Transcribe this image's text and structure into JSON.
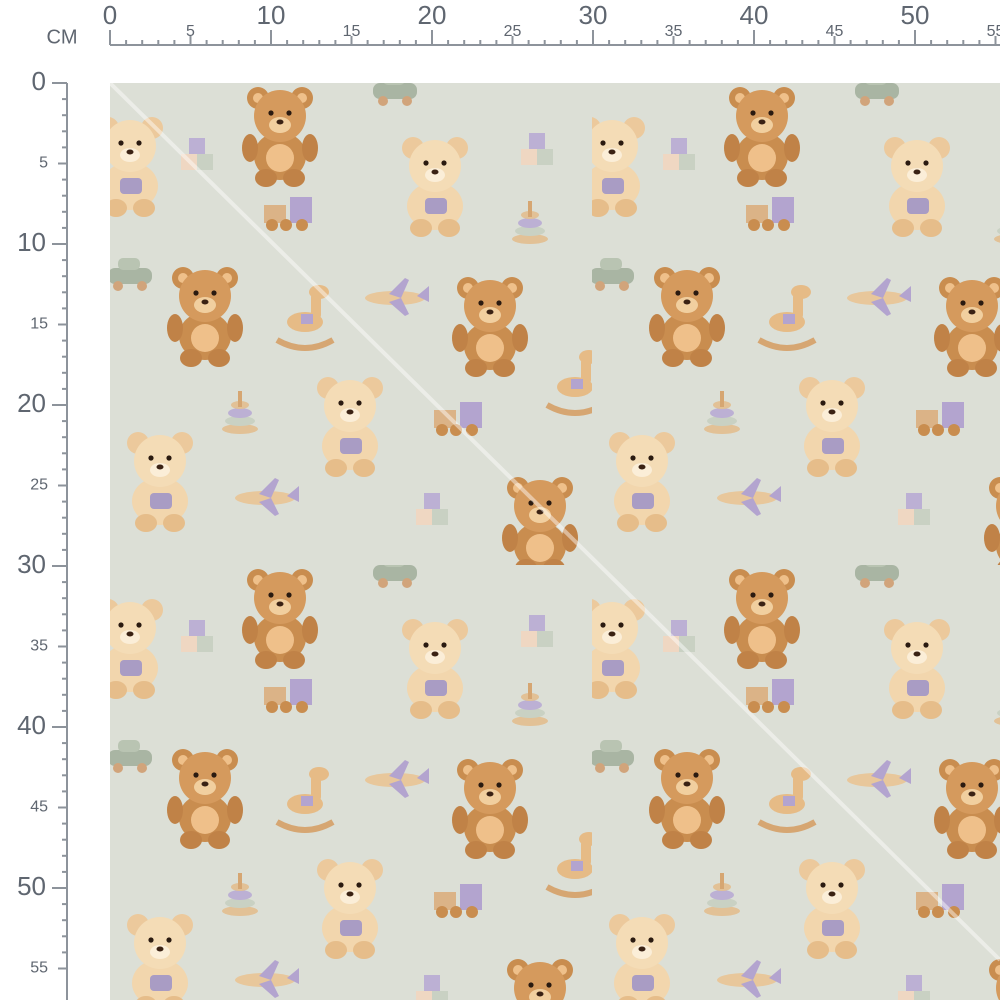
{
  "ruler": {
    "unit": "CM",
    "horizontal_ticks": [
      0,
      5,
      10,
      15,
      20,
      25,
      30,
      35,
      40,
      45,
      50,
      55
    ],
    "vertical_ticks": [
      0,
      5,
      10,
      15,
      20,
      25,
      30,
      35,
      40,
      45,
      50,
      55
    ]
  }
}
